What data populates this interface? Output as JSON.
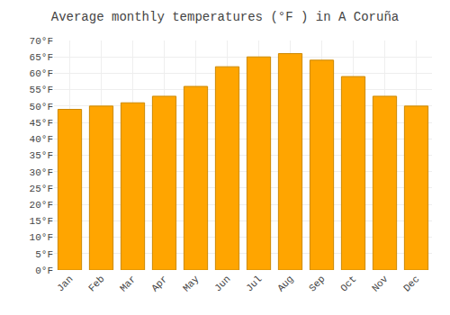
{
  "chart_data": {
    "type": "bar",
    "title": "Average monthly temperatures (°F ) in A Coruña",
    "categories": [
      "Jan",
      "Feb",
      "Mar",
      "Apr",
      "May",
      "Jun",
      "Jul",
      "Aug",
      "Sep",
      "Oct",
      "Nov",
      "Dec"
    ],
    "values": [
      49,
      50,
      51,
      53,
      56,
      62,
      65,
      66,
      64,
      59,
      53,
      50
    ],
    "color": "#FFA500",
    "ylim": [
      0,
      70
    ],
    "yticks": [
      {
        "value": 0,
        "label": "0°F"
      },
      {
        "value": 5,
        "label": "5°F"
      },
      {
        "value": 10,
        "label": "10°F"
      },
      {
        "value": 15,
        "label": "15°F"
      },
      {
        "value": 20,
        "label": "20°F"
      },
      {
        "value": 25,
        "label": "25°F"
      },
      {
        "value": 30,
        "label": "30°F"
      },
      {
        "value": 35,
        "label": "35°F"
      },
      {
        "value": 40,
        "label": "40°F"
      },
      {
        "value": 45,
        "label": "45°F"
      },
      {
        "value": 50,
        "label": "50°F"
      },
      {
        "value": 55,
        "label": "55°F"
      },
      {
        "value": 60,
        "label": "60°F"
      },
      {
        "value": 65,
        "label": "65°F"
      },
      {
        "value": 70,
        "label": "70°F"
      }
    ],
    "grid": true
  }
}
